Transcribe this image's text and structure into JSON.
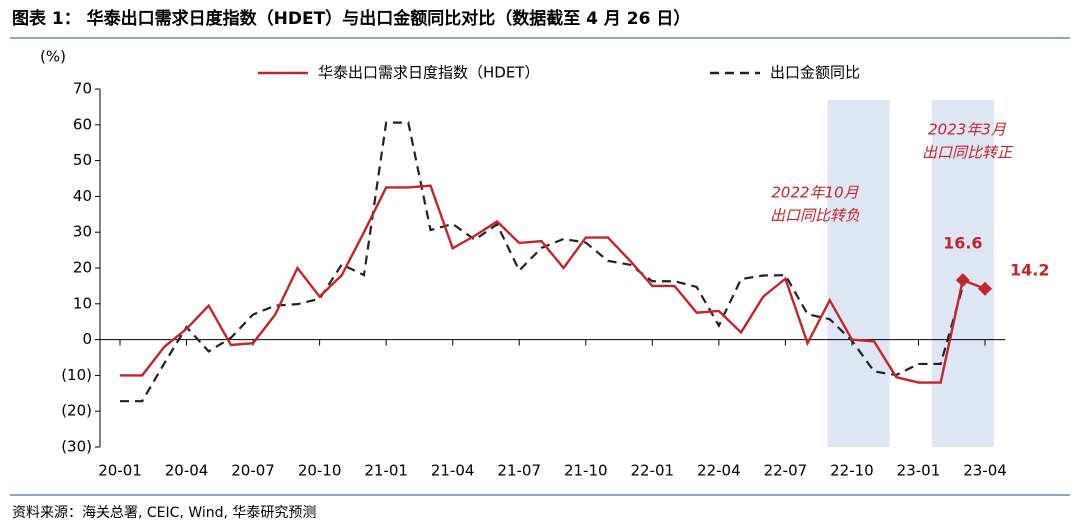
{
  "chart_data": {
    "type": "line",
    "title": "图表 1：   华泰出口需求日度指数（HDET）与出口金额同比对比（数据截至 4 月 26 日）",
    "y_axis_label": "(%)",
    "source": "资料来源：海关总署, CEIC, Wind, 华泰研究预测",
    "categories": [
      "20-01",
      null,
      null,
      "20-04",
      null,
      null,
      "20-07",
      null,
      null,
      "20-10",
      null,
      null,
      "21-01",
      null,
      null,
      "21-04",
      null,
      null,
      "21-07",
      null,
      null,
      "21-10",
      null,
      null,
      "22-01",
      null,
      null,
      "22-04",
      null,
      null,
      "22-07",
      null,
      null,
      "22-10",
      null,
      null,
      "23-01",
      null,
      null,
      "23-04"
    ],
    "series": [
      {
        "name": "华泰出口需求日度指数（HDET）",
        "color": "#c0262d",
        "style": "solid",
        "values": [
          -10,
          -10,
          -2,
          3,
          9.5,
          -1.5,
          -1,
          7,
          20,
          12,
          18,
          30,
          42.5,
          42.5,
          43,
          25.5,
          29,
          33,
          27,
          27.5,
          20,
          28.5,
          28.5,
          22,
          15,
          15,
          7.5,
          8,
          2,
          12,
          17,
          -1,
          11,
          0,
          -0.5,
          -10.5,
          -12,
          -12,
          16.6,
          14.2
        ],
        "value_labels": [
          null,
          null,
          null,
          null,
          null,
          null,
          null,
          null,
          null,
          null,
          null,
          null,
          null,
          null,
          null,
          null,
          null,
          null,
          null,
          null,
          null,
          null,
          null,
          null,
          null,
          null,
          null,
          null,
          null,
          null,
          null,
          null,
          null,
          null,
          null,
          null,
          null,
          null,
          "16.6",
          "14.2"
        ]
      },
      {
        "name": "出口金额同比",
        "color": "#222222",
        "style": "dashed",
        "values": [
          -17.2,
          -17.2,
          -6.6,
          3.5,
          -3.3,
          0.5,
          7,
          9.5,
          9.9,
          11.4,
          21,
          18,
          60.6,
          60.6,
          30.6,
          32.3,
          27.9,
          32.2,
          19.3,
          25.6,
          28.1,
          27.1,
          22,
          20.9,
          16.3,
          16.3,
          14.7,
          3.9,
          16.9,
          17.9,
          18,
          7.1,
          5.7,
          -0.3,
          -8.9,
          -9.9,
          -6.8,
          -6.8,
          14.8,
          null
        ]
      }
    ],
    "ylim": [
      -30,
      70
    ],
    "yticks": [
      70,
      60,
      50,
      40,
      30,
      20,
      10,
      0,
      {
        "value": -10,
        "label": "(10)"
      },
      {
        "value": -20,
        "label": "(20)"
      },
      {
        "value": -30,
        "label": "(30)"
      }
    ],
    "annotations": [
      {
        "lines": [
          "2022年10月",
          "出口同比转负"
        ]
      },
      {
        "lines": [
          "2023年3月",
          "出口同比转正"
        ]
      }
    ]
  }
}
